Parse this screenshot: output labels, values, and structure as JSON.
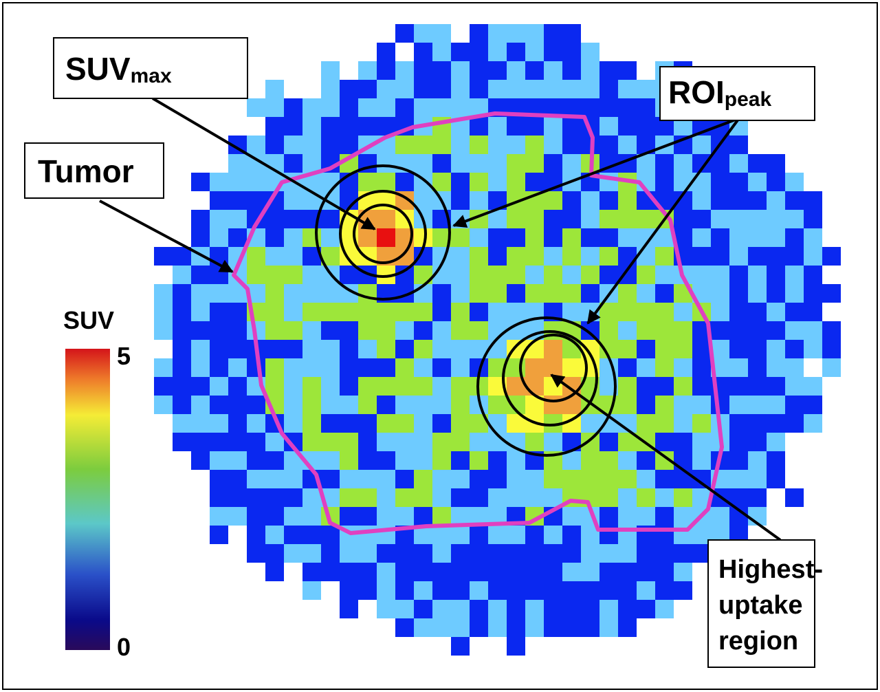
{
  "labels": {
    "suv_max": {
      "main": "SUV",
      "sub": "max"
    },
    "roi_peak": {
      "main": "ROI",
      "sub": "peak"
    },
    "tumor": "Tumor",
    "highest_uptake": [
      "Highest-",
      "uptake",
      "region"
    ]
  },
  "colorbar": {
    "title": "SUV",
    "max": 5,
    "min": 0
  }
}
